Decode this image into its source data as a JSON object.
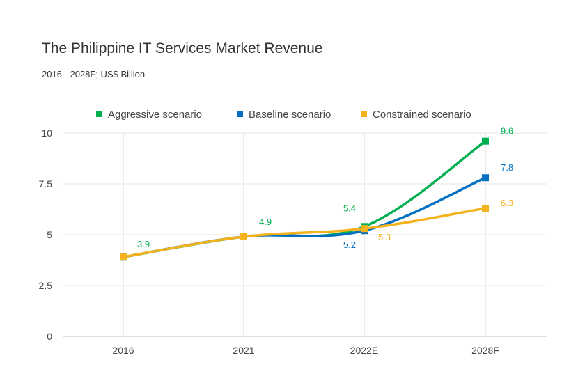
{
  "chart_data": {
    "type": "line",
    "title": "The Philippine IT Services Market Revenue",
    "subtitle": "2016 - 2028F; US$ Billion",
    "categories": [
      "2016",
      "2021",
      "2022E",
      "2028F"
    ],
    "ylim": [
      0,
      10
    ],
    "yticks": [
      {
        "value": 0,
        "label": "0"
      },
      {
        "value": 2.5,
        "label": "2.5"
      },
      {
        "value": 5,
        "label": "5"
      },
      {
        "value": 7.5,
        "label": "7.5"
      },
      {
        "value": 10,
        "label": "10"
      }
    ],
    "grid": true,
    "legend_position": "top",
    "series": [
      {
        "name": "Aggressive scenario",
        "color": "#00b050",
        "values": [
          3.9,
          4.9,
          5.4,
          9.6
        ]
      },
      {
        "name": "Baseline scenario",
        "color": "#0070c0",
        "values": [
          3.9,
          4.9,
          5.2,
          7.8
        ]
      },
      {
        "name": "Constrained scenario",
        "color": "#f5b21f",
        "values": [
          3.9,
          4.9,
          5.3,
          6.3
        ]
      }
    ],
    "data_labels": [
      {
        "series": 0,
        "index": 0,
        "text": "3.9"
      },
      {
        "series": 0,
        "index": 1,
        "text": "4.9"
      },
      {
        "series": 0,
        "index": 2,
        "text": "5.4"
      },
      {
        "series": 1,
        "index": 2,
        "text": "5.2"
      },
      {
        "series": 2,
        "index": 2,
        "text": "5.3"
      },
      {
        "series": 0,
        "index": 3,
        "text": "9.6"
      },
      {
        "series": 1,
        "index": 3,
        "text": "7.8"
      },
      {
        "series": 2,
        "index": 3,
        "text": "6.3"
      }
    ]
  }
}
